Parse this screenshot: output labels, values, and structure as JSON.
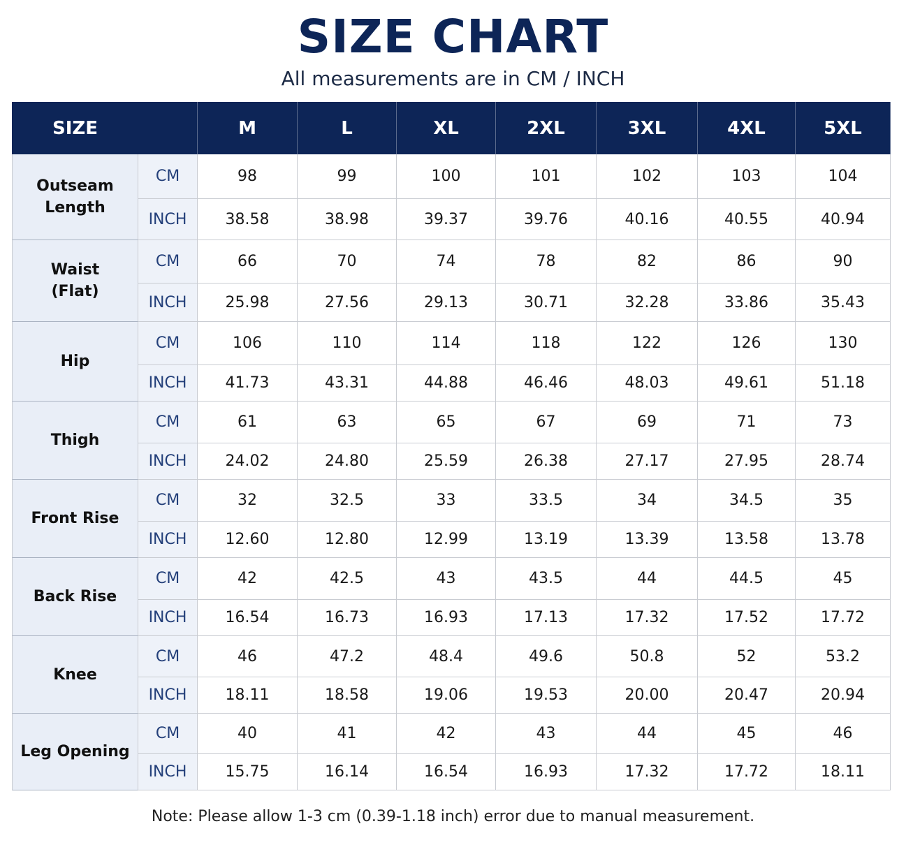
{
  "header": {
    "title": "SIZE CHART",
    "subtitle": "All measurements are in CM / INCH"
  },
  "table": {
    "corner": "SIZE",
    "sizes": [
      "M",
      "L",
      "XL",
      "2XL",
      "3XL",
      "4XL",
      "5XL"
    ],
    "groups": [
      {
        "label": "Outseam\nLength",
        "rows": [
          {
            "unit": "CM",
            "values": [
              "98",
              "99",
              "100",
              "101",
              "102",
              "103",
              "104"
            ]
          },
          {
            "unit": "INCH",
            "values": [
              "38.58",
              "38.98",
              "39.37",
              "39.76",
              "40.16",
              "40.55",
              "40.94"
            ]
          }
        ]
      },
      {
        "label": "Waist\n(Flat)",
        "rows": [
          {
            "unit": "CM",
            "values": [
              "66",
              "70",
              "74",
              "78",
              "82",
              "86",
              "90"
            ]
          },
          {
            "unit": "INCH",
            "values": [
              "25.98",
              "27.56",
              "29.13",
              "30.71",
              "32.28",
              "33.86",
              "35.43"
            ]
          }
        ]
      },
      {
        "label": "Hip",
        "rows": [
          {
            "unit": "CM",
            "values": [
              "106",
              "110",
              "114",
              "118",
              "122",
              "126",
              "130"
            ]
          },
          {
            "unit": "INCH",
            "values": [
              "41.73",
              "43.31",
              "44.88",
              "46.46",
              "48.03",
              "49.61",
              "51.18"
            ]
          }
        ]
      },
      {
        "label": "Thigh",
        "rows": [
          {
            "unit": "CM",
            "values": [
              "61",
              "63",
              "65",
              "67",
              "69",
              "71",
              "73"
            ]
          },
          {
            "unit": "INCH",
            "values": [
              "24.02",
              "24.80",
              "25.59",
              "26.38",
              "27.17",
              "27.95",
              "28.74"
            ]
          }
        ]
      },
      {
        "label": "Front Rise",
        "rows": [
          {
            "unit": "CM",
            "values": [
              "32",
              "32.5",
              "33",
              "33.5",
              "34",
              "34.5",
              "35"
            ]
          },
          {
            "unit": "INCH",
            "values": [
              "12.60",
              "12.80",
              "12.99",
              "13.19",
              "13.39",
              "13.58",
              "13.78"
            ]
          }
        ]
      },
      {
        "label": "Back Rise",
        "rows": [
          {
            "unit": "CM",
            "values": [
              "42",
              "42.5",
              "43",
              "43.5",
              "44",
              "44.5",
              "45"
            ]
          },
          {
            "unit": "INCH",
            "values": [
              "16.54",
              "16.73",
              "16.93",
              "17.13",
              "17.32",
              "17.52",
              "17.72"
            ]
          }
        ]
      },
      {
        "label": "Knee",
        "rows": [
          {
            "unit": "CM",
            "values": [
              "46",
              "47.2",
              "48.4",
              "49.6",
              "50.8",
              "52",
              "53.2"
            ]
          },
          {
            "unit": "INCH",
            "values": [
              "18.11",
              "18.58",
              "19.06",
              "19.53",
              "20.00",
              "20.47",
              "20.94"
            ]
          }
        ]
      },
      {
        "label": "Leg Opening",
        "rows": [
          {
            "unit": "CM",
            "values": [
              "40",
              "41",
              "42",
              "43",
              "44",
              "45",
              "46"
            ]
          },
          {
            "unit": "INCH",
            "values": [
              "15.75",
              "16.14",
              "16.54",
              "16.93",
              "17.32",
              "17.72",
              "18.11"
            ]
          }
        ]
      }
    ]
  },
  "note": "Note: Please allow 1-3 cm (0.39-1.18 inch) error due to manual measurement."
}
